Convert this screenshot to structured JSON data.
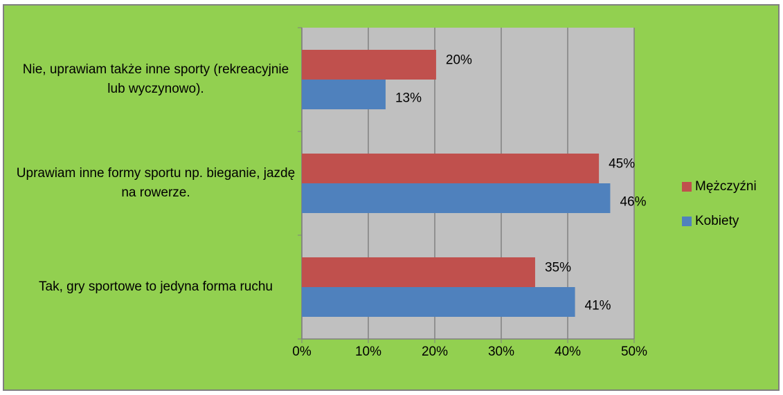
{
  "chart_data": {
    "type": "bar",
    "orientation": "horizontal",
    "categories": [
      "Nie, uprawiam także inne sporty (rekreacyjnie lub wyczynowo).",
      "Uprawiam  inne formy sportu np. bieganie, jazdę na rowerze.",
      "Tak, gry sportowe to jedyna forma ruchu"
    ],
    "series": [
      {
        "name": "Mężczyźni",
        "color": "#c0504d",
        "values": [
          20.2,
          44.7,
          35.1
        ],
        "value_labels": [
          "20%",
          "45%",
          "35%"
        ]
      },
      {
        "name": "Kobiety",
        "color": "#4f81bd",
        "values": [
          12.6,
          46.4,
          41.1
        ],
        "value_labels": [
          "13%",
          "46%",
          "41%"
        ]
      }
    ],
    "xlim": [
      0,
      50
    ],
    "xticks": [
      {
        "value": 0,
        "label": "0%"
      },
      {
        "value": 10,
        "label": "10%"
      },
      {
        "value": 20,
        "label": "20%"
      },
      {
        "value": 30,
        "label": "30%"
      },
      {
        "value": 40,
        "label": "40%"
      },
      {
        "value": 50,
        "label": "50%"
      }
    ],
    "grid": true,
    "legend": "right"
  }
}
